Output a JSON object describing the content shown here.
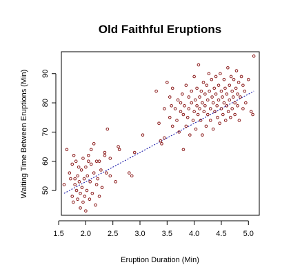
{
  "chart_data": {
    "type": "scatter",
    "title": "Old Faithful Eruptions",
    "xlabel": "Eruption Duration (Min)",
    "ylabel": "Waiting Time Between Eruptions (Min)",
    "xlim": [
      1.55,
      5.2
    ],
    "ylim": [
      41.5,
      97.5
    ],
    "xticks": [
      "1.5",
      "2.0",
      "2.5",
      "3.0",
      "3.5",
      "4.0",
      "4.5",
      "5.0"
    ],
    "yticks": [
      "50",
      "60",
      "70",
      "80",
      "90"
    ],
    "grid": false,
    "legend": "none",
    "point_color": "#8b1a1a",
    "trend_color": "#2b2bb0",
    "trend_line": {
      "x": [
        1.6,
        5.1
      ],
      "y": [
        49,
        84
      ]
    },
    "points": [
      [
        1.6,
        52
      ],
      [
        1.65,
        64
      ],
      [
        1.7,
        56
      ],
      [
        1.72,
        54
      ],
      [
        1.75,
        59
      ],
      [
        1.75,
        48
      ],
      [
        1.77,
        46
      ],
      [
        1.78,
        62
      ],
      [
        1.8,
        52
      ],
      [
        1.8,
        54
      ],
      [
        1.82,
        60
      ],
      [
        1.83,
        50
      ],
      [
        1.85,
        47
      ],
      [
        1.85,
        55
      ],
      [
        1.87,
        58
      ],
      [
        1.88,
        53
      ],
      [
        1.9,
        44
      ],
      [
        1.9,
        49
      ],
      [
        1.92,
        57
      ],
      [
        1.93,
        51
      ],
      [
        1.95,
        61
      ],
      [
        1.95,
        46
      ],
      [
        1.97,
        54
      ],
      [
        1.98,
        48
      ],
      [
        2.0,
        43
      ],
      [
        2.0,
        58
      ],
      [
        2.02,
        50
      ],
      [
        2.03,
        55
      ],
      [
        2.05,
        60
      ],
      [
        2.05,
        62
      ],
      [
        2.07,
        47
      ],
      [
        2.08,
        53
      ],
      [
        2.1,
        59
      ],
      [
        2.1,
        64
      ],
      [
        2.12,
        49
      ],
      [
        2.15,
        66
      ],
      [
        2.15,
        56
      ],
      [
        2.18,
        45
      ],
      [
        2.2,
        60
      ],
      [
        2.2,
        52
      ],
      [
        2.22,
        54
      ],
      [
        2.25,
        60
      ],
      [
        2.25,
        48
      ],
      [
        2.28,
        57
      ],
      [
        2.3,
        51
      ],
      [
        2.35,
        62
      ],
      [
        2.35,
        63
      ],
      [
        2.38,
        56
      ],
      [
        2.4,
        71
      ],
      [
        2.45,
        55
      ],
      [
        2.45,
        61
      ],
      [
        2.55,
        53
      ],
      [
        2.6,
        65
      ],
      [
        2.62,
        64
      ],
      [
        2.8,
        56
      ],
      [
        2.85,
        55
      ],
      [
        2.9,
        63
      ],
      [
        3.05,
        69
      ],
      [
        3.3,
        84
      ],
      [
        3.35,
        73
      ],
      [
        3.38,
        67
      ],
      [
        3.4,
        66
      ],
      [
        3.45,
        78
      ],
      [
        3.45,
        68
      ],
      [
        3.5,
        87
      ],
      [
        3.55,
        82
      ],
      [
        3.55,
        75
      ],
      [
        3.58,
        79
      ],
      [
        3.6,
        85
      ],
      [
        3.6,
        72
      ],
      [
        3.65,
        78
      ],
      [
        3.68,
        74
      ],
      [
        3.7,
        81
      ],
      [
        3.72,
        70
      ],
      [
        3.75,
        80
      ],
      [
        3.75,
        77
      ],
      [
        3.78,
        83
      ],
      [
        3.8,
        64
      ],
      [
        3.8,
        76
      ],
      [
        3.82,
        79
      ],
      [
        3.85,
        86
      ],
      [
        3.85,
        72
      ],
      [
        3.88,
        75
      ],
      [
        3.9,
        78
      ],
      [
        3.9,
        82
      ],
      [
        3.92,
        69
      ],
      [
        3.95,
        84
      ],
      [
        3.95,
        80
      ],
      [
        3.98,
        74
      ],
      [
        4.0,
        89
      ],
      [
        4.0,
        77
      ],
      [
        4.02,
        81
      ],
      [
        4.03,
        71
      ],
      [
        4.05,
        85
      ],
      [
        4.05,
        79
      ],
      [
        4.07,
        76
      ],
      [
        4.08,
        93
      ],
      [
        4.1,
        82
      ],
      [
        4.1,
        78
      ],
      [
        4.12,
        74
      ],
      [
        4.13,
        84
      ],
      [
        4.15,
        80
      ],
      [
        4.15,
        69
      ],
      [
        4.17,
        87
      ],
      [
        4.18,
        77
      ],
      [
        4.2,
        83
      ],
      [
        4.2,
        79
      ],
      [
        4.22,
        72
      ],
      [
        4.23,
        86
      ],
      [
        4.25,
        81
      ],
      [
        4.25,
        76
      ],
      [
        4.27,
        90
      ],
      [
        4.28,
        84
      ],
      [
        4.3,
        78
      ],
      [
        4.3,
        74
      ],
      [
        4.32,
        88
      ],
      [
        4.33,
        82
      ],
      [
        4.35,
        80
      ],
      [
        4.35,
        71
      ],
      [
        4.37,
        85
      ],
      [
        4.38,
        77
      ],
      [
        4.4,
        83
      ],
      [
        4.4,
        89
      ],
      [
        4.42,
        79
      ],
      [
        4.43,
        75
      ],
      [
        4.45,
        86
      ],
      [
        4.45,
        81
      ],
      [
        4.47,
        73
      ],
      [
        4.48,
        90
      ],
      [
        4.5,
        84
      ],
      [
        4.5,
        78
      ],
      [
        4.52,
        82
      ],
      [
        4.53,
        76
      ],
      [
        4.55,
        88
      ],
      [
        4.55,
        80
      ],
      [
        4.57,
        85
      ],
      [
        4.58,
        74
      ],
      [
        4.6,
        83
      ],
      [
        4.6,
        79
      ],
      [
        4.62,
        92
      ],
      [
        4.63,
        77
      ],
      [
        4.65,
        86
      ],
      [
        4.65,
        81
      ],
      [
        4.67,
        75
      ],
      [
        4.68,
        89
      ],
      [
        4.7,
        84
      ],
      [
        4.7,
        78
      ],
      [
        4.72,
        82
      ],
      [
        4.73,
        88
      ],
      [
        4.75,
        80
      ],
      [
        4.75,
        76
      ],
      [
        4.77,
        85
      ],
      [
        4.78,
        91
      ],
      [
        4.8,
        83
      ],
      [
        4.8,
        79
      ],
      [
        4.82,
        87
      ],
      [
        4.83,
        74
      ],
      [
        4.85,
        82
      ],
      [
        4.87,
        89
      ],
      [
        4.9,
        86
      ],
      [
        4.9,
        78
      ],
      [
        4.93,
        84
      ],
      [
        4.95,
        80
      ],
      [
        5.0,
        88
      ],
      [
        5.05,
        77
      ],
      [
        5.08,
        76
      ],
      [
        5.1,
        96
      ]
    ]
  }
}
